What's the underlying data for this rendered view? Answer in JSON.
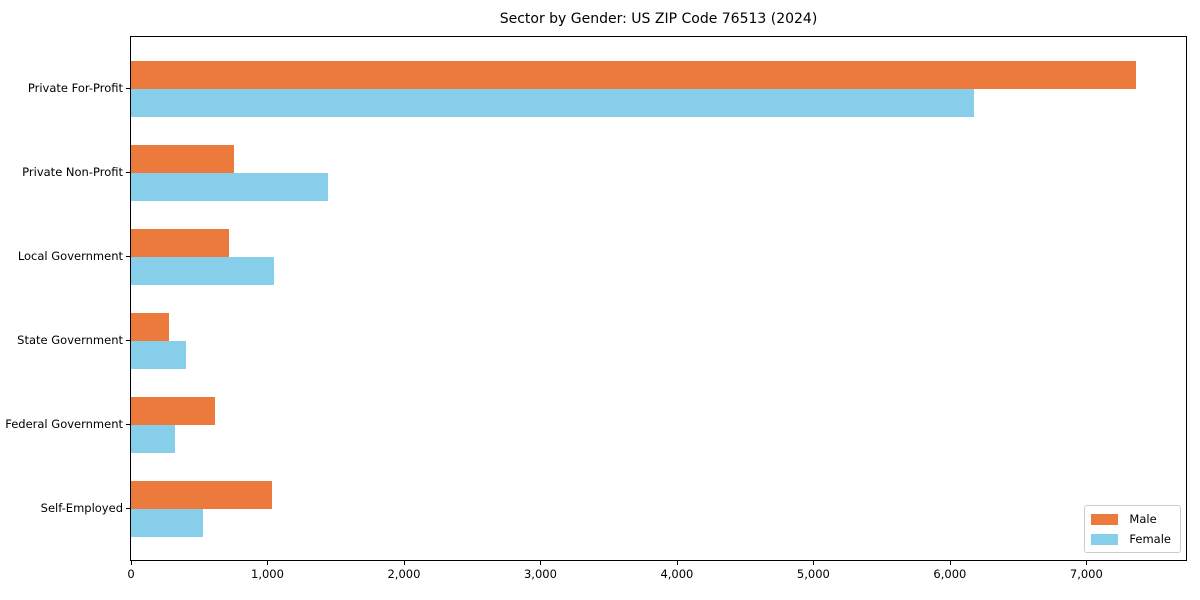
{
  "chart_data": {
    "type": "bar",
    "orientation": "horizontal",
    "title": "Sector by Gender: US ZIP Code 76513 (2024)",
    "categories": [
      "Private For-Profit",
      "Private Non-Profit",
      "Local Government",
      "State Government",
      "Federal Government",
      "Self-Employed"
    ],
    "series": [
      {
        "name": "Male",
        "color": "#EC7A3C",
        "values": [
          7360,
          755,
          720,
          280,
          615,
          1030
        ]
      },
      {
        "name": "Female",
        "color": "#87CEEB",
        "values": [
          6180,
          1445,
          1050,
          400,
          325,
          530
        ]
      }
    ],
    "xlim": [
      0,
      7730
    ],
    "xticks": [
      0,
      1000,
      2000,
      3000,
      4000,
      5000,
      6000,
      7000
    ],
    "xtick_labels": [
      "0",
      "1,000",
      "2,000",
      "3,000",
      "4,000",
      "5,000",
      "6,000",
      "7,000"
    ],
    "xlabel": "",
    "ylabel": "",
    "grid": false,
    "legend_position": "lower right"
  }
}
